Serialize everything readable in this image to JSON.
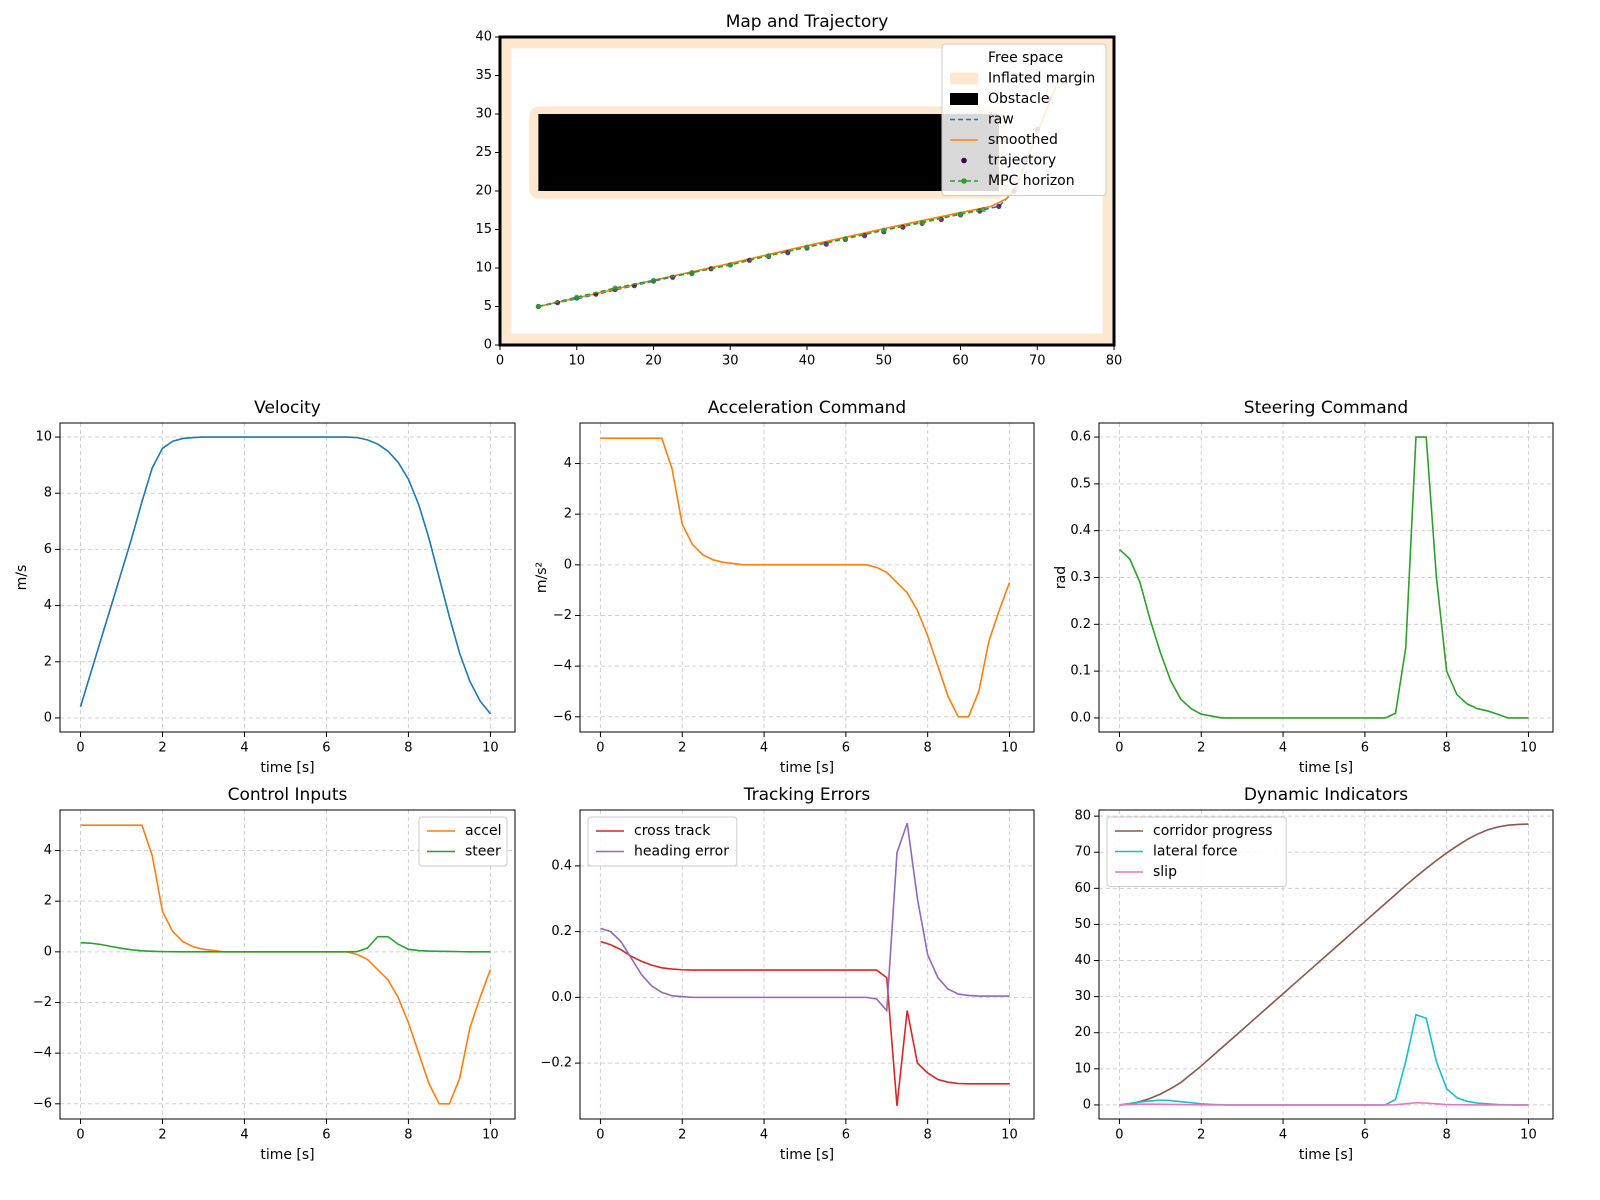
{
  "chart_data": [
    {
      "type": "map",
      "title": "Map and Trajectory",
      "xlim": [
        0,
        80
      ],
      "ylim": [
        0,
        40
      ],
      "xticks": [
        0,
        10,
        20,
        30,
        40,
        50,
        60,
        70,
        80
      ],
      "yticks": [
        0,
        5,
        10,
        15,
        20,
        25,
        30,
        35,
        40
      ],
      "legend": "upper right",
      "series": [
        {
          "name": "Free space",
          "color": "#ffffff",
          "style": "patch",
          "rects": [
            {
              "x": [
                1.5,
                78.5
              ],
              "y": [
                1.5,
                38.5
              ]
            }
          ]
        },
        {
          "name": "Inflated margin",
          "color": "#fde9cf",
          "style": "patch",
          "rects": [
            {
              "x": [
                0,
                80
              ],
              "y": [
                0,
                40
              ]
            },
            {
              "x": [
                3.8,
                66
              ],
              "y": [
                19,
                31
              ]
            }
          ]
        },
        {
          "name": "Obstacle",
          "color": "#000000",
          "style": "patch",
          "rects": [
            {
              "x": [
                5,
                65
              ],
              "y": [
                20,
                30
              ]
            }
          ]
        },
        {
          "name": "raw",
          "color": "#1f77b4",
          "style": "dashed",
          "x": [
            5,
            10,
            20,
            30,
            40,
            50,
            60,
            65,
            67,
            69,
            71,
            73
          ],
          "y": [
            5,
            6,
            8.3,
            10.5,
            12.8,
            15,
            17,
            18,
            20,
            25,
            30,
            35
          ]
        },
        {
          "name": "smoothed",
          "color": "#ff7f0e",
          "style": "line",
          "x": [
            5,
            10,
            20,
            30,
            40,
            50,
            60,
            64,
            66,
            67.5,
            69,
            71,
            73
          ],
          "y": [
            5,
            6.1,
            8.4,
            10.6,
            12.9,
            15.1,
            17.2,
            18,
            19,
            21,
            25,
            30,
            35
          ]
        },
        {
          "name": "trajectory",
          "color": "#440154",
          "style": "points",
          "x": [
            5,
            7.5,
            10,
            12.5,
            15,
            17.5,
            20,
            22.5,
            25,
            27.5,
            30,
            32.5,
            35,
            37.5,
            40,
            42.5,
            45,
            47.5,
            50,
            52.5,
            55,
            57.5,
            60,
            62.5,
            65,
            67,
            68.5,
            70,
            71.5
          ],
          "y": [
            5,
            5.5,
            6.1,
            6.6,
            7.2,
            7.7,
            8.3,
            8.8,
            9.3,
            9.9,
            10.4,
            11,
            11.5,
            12,
            12.6,
            13.1,
            13.7,
            14.2,
            14.7,
            15.3,
            15.8,
            16.3,
            16.9,
            17.4,
            18,
            20,
            24,
            28,
            32
          ]
        },
        {
          "name": "MPC horizon",
          "color": "#2ca02c",
          "style": "dashed-points",
          "x": [
            5,
            10,
            15,
            20,
            25,
            30,
            35,
            40,
            45,
            50,
            55,
            60,
            63
          ],
          "y": [
            5,
            6.2,
            7.4,
            8.4,
            9.4,
            10.4,
            11.6,
            12.7,
            13.8,
            14.9,
            15.9,
            17,
            17.6
          ]
        }
      ]
    },
    {
      "type": "line",
      "title": "Velocity",
      "xlabel": "time [s]",
      "ylabel": "m/s",
      "grid": true,
      "xlim": [
        -0.5,
        10.6
      ],
      "ylim": [
        -0.5,
        10.5
      ],
      "xticks": [
        0,
        2,
        4,
        6,
        8,
        10
      ],
      "yticks": [
        0,
        2,
        4,
        6,
        8,
        10
      ],
      "x": [
        0,
        0.25,
        0.5,
        0.75,
        1,
        1.25,
        1.5,
        1.75,
        2,
        2.25,
        2.5,
        2.75,
        3,
        3.25,
        3.5,
        3.75,
        4,
        4.25,
        4.5,
        4.75,
        5,
        5.25,
        5.5,
        5.75,
        6,
        6.25,
        6.5,
        6.75,
        7,
        7.25,
        7.5,
        7.75,
        8,
        8.25,
        8.5,
        8.75,
        9,
        9.25,
        9.5,
        9.75,
        10
      ],
      "color": "#1f77b4",
      "values": [
        0.4,
        1.6,
        2.8,
        4.0,
        5.2,
        6.4,
        7.7,
        8.9,
        9.6,
        9.85,
        9.95,
        9.98,
        10,
        10,
        10,
        10,
        10,
        10,
        10,
        10,
        10,
        10,
        10,
        10,
        10,
        10,
        10,
        9.98,
        9.9,
        9.75,
        9.5,
        9.1,
        8.5,
        7.6,
        6.4,
        5.0,
        3.6,
        2.3,
        1.3,
        0.6,
        0.15
      ]
    },
    {
      "type": "line",
      "title": "Acceleration Command",
      "xlabel": "time [s]",
      "ylabel": "m/s²",
      "grid": true,
      "xlim": [
        -0.5,
        10.6
      ],
      "ylim": [
        -6.6,
        5.6
      ],
      "xticks": [
        0,
        2,
        4,
        6,
        8,
        10
      ],
      "yticks": [
        {
          "value": -6,
          "label": "−6"
        },
        {
          "value": -4,
          "label": "−4"
        },
        {
          "value": -2,
          "label": "−2"
        },
        0,
        2,
        4
      ],
      "x": [
        0,
        0.25,
        0.5,
        0.75,
        1,
        1.25,
        1.5,
        1.75,
        2,
        2.25,
        2.5,
        2.75,
        3,
        3.25,
        3.5,
        3.75,
        4,
        4.25,
        4.5,
        4.75,
        5,
        5.25,
        5.5,
        5.75,
        6,
        6.25,
        6.5,
        6.75,
        7,
        7.25,
        7.5,
        7.75,
        8,
        8.25,
        8.5,
        8.75,
        9,
        9.25,
        9.5,
        9.75,
        10
      ],
      "color": "#ff7f0e",
      "values": [
        5,
        5,
        5,
        5,
        5,
        5,
        5,
        3.8,
        1.6,
        0.8,
        0.4,
        0.2,
        0.1,
        0.05,
        0,
        0,
        0,
        0,
        0,
        0,
        0,
        0,
        0,
        0,
        0,
        0,
        0,
        -0.1,
        -0.3,
        -0.7,
        -1.1,
        -1.8,
        -2.8,
        -4.0,
        -5.2,
        -6.0,
        -6.0,
        -5.0,
        -3.0,
        -1.8,
        -0.7
      ]
    },
    {
      "type": "line",
      "title": "Steering Command",
      "xlabel": "time [s]",
      "ylabel": "rad",
      "grid": true,
      "xlim": [
        -0.5,
        10.6
      ],
      "ylim": [
        -0.03,
        0.63
      ],
      "xticks": [
        0,
        2,
        4,
        6,
        8,
        10
      ],
      "yticks": [
        {
          "value": 0,
          "label": "0.0"
        },
        0.1,
        0.2,
        0.3,
        0.4,
        0.5,
        0.6
      ],
      "x": [
        0,
        0.25,
        0.5,
        0.75,
        1,
        1.25,
        1.5,
        1.75,
        2,
        2.25,
        2.5,
        2.75,
        3,
        3.25,
        3.5,
        3.75,
        4,
        4.25,
        4.5,
        4.75,
        5,
        5.25,
        5.5,
        5.75,
        6,
        6.25,
        6.5,
        6.75,
        7,
        7.25,
        7.5,
        7.75,
        8,
        8.25,
        8.5,
        8.75,
        9,
        9.25,
        9.5,
        9.75,
        10
      ],
      "color": "#2ca02c",
      "values": [
        0.36,
        0.34,
        0.29,
        0.21,
        0.14,
        0.08,
        0.04,
        0.02,
        0.008,
        0.004,
        0,
        0,
        0,
        0,
        0,
        0,
        0,
        0,
        0,
        0,
        0,
        0,
        0,
        0,
        0,
        0,
        0,
        0.01,
        0.15,
        0.6,
        0.6,
        0.3,
        0.1,
        0.05,
        0.03,
        0.02,
        0.015,
        0.008,
        0,
        0,
        0
      ]
    },
    {
      "type": "line",
      "title": "Control Inputs",
      "xlabel": "time [s]",
      "grid": true,
      "legend": "upper right",
      "xlim": [
        -0.5,
        10.6
      ],
      "ylim": [
        -6.6,
        5.6
      ],
      "xticks": [
        0,
        2,
        4,
        6,
        8,
        10
      ],
      "yticks": [
        {
          "value": -6,
          "label": "−6"
        },
        {
          "value": -4,
          "label": "−4"
        },
        {
          "value": -2,
          "label": "−2"
        },
        0,
        2,
        4
      ],
      "x": [
        0,
        0.25,
        0.5,
        0.75,
        1,
        1.25,
        1.5,
        1.75,
        2,
        2.25,
        2.5,
        2.75,
        3,
        3.25,
        3.5,
        3.75,
        4,
        4.25,
        4.5,
        4.75,
        5,
        5.25,
        5.5,
        5.75,
        6,
        6.25,
        6.5,
        6.75,
        7,
        7.25,
        7.5,
        7.75,
        8,
        8.25,
        8.5,
        8.75,
        9,
        9.25,
        9.5,
        9.75,
        10
      ],
      "series": [
        {
          "name": "accel",
          "color": "#ff7f0e",
          "values": [
            5,
            5,
            5,
            5,
            5,
            5,
            5,
            3.8,
            1.6,
            0.8,
            0.4,
            0.2,
            0.1,
            0.05,
            0,
            0,
            0,
            0,
            0,
            0,
            0,
            0,
            0,
            0,
            0,
            0,
            0,
            -0.1,
            -0.3,
            -0.7,
            -1.1,
            -1.8,
            -2.8,
            -4.0,
            -5.2,
            -6.0,
            -6.0,
            -5.0,
            -3.0,
            -1.8,
            -0.7
          ]
        },
        {
          "name": "steer",
          "color": "#2ca02c",
          "values": [
            0.36,
            0.34,
            0.29,
            0.21,
            0.14,
            0.08,
            0.04,
            0.02,
            0.008,
            0.004,
            0,
            0,
            0,
            0,
            0,
            0,
            0,
            0,
            0,
            0,
            0,
            0,
            0,
            0,
            0,
            0,
            0,
            0.01,
            0.15,
            0.6,
            0.6,
            0.3,
            0.1,
            0.05,
            0.03,
            0.02,
            0.015,
            0.008,
            0,
            0,
            0
          ]
        }
      ]
    },
    {
      "type": "line",
      "title": "Tracking Errors",
      "xlabel": "time [s]",
      "grid": true,
      "legend": "upper left",
      "xlim": [
        -0.5,
        10.6
      ],
      "ylim": [
        -0.37,
        0.57
      ],
      "xticks": [
        0,
        2,
        4,
        6,
        8,
        10
      ],
      "yticks": [
        {
          "value": -0.2,
          "label": "−0.2"
        },
        {
          "value": 0,
          "label": "0.0"
        },
        0.2,
        0.4
      ],
      "x": [
        0,
        0.25,
        0.5,
        0.75,
        1,
        1.25,
        1.5,
        1.75,
        2,
        2.25,
        2.5,
        2.75,
        3,
        3.25,
        3.5,
        3.75,
        4,
        4.25,
        4.5,
        4.75,
        5,
        5.25,
        5.5,
        5.75,
        6,
        6.25,
        6.5,
        6.75,
        7,
        7.25,
        7.5,
        7.75,
        8,
        8.25,
        8.5,
        8.75,
        9,
        9.25,
        9.5,
        9.75,
        10
      ],
      "series": [
        {
          "name": "cross track",
          "color": "#d62728",
          "values": [
            0.17,
            0.16,
            0.145,
            0.125,
            0.11,
            0.098,
            0.09,
            0.086,
            0.084,
            0.083,
            0.083,
            0.083,
            0.083,
            0.083,
            0.083,
            0.083,
            0.083,
            0.083,
            0.083,
            0.083,
            0.083,
            0.083,
            0.083,
            0.083,
            0.083,
            0.083,
            0.083,
            0.083,
            0.06,
            -0.33,
            -0.04,
            -0.2,
            -0.23,
            -0.25,
            -0.258,
            -0.262,
            -0.263,
            -0.263,
            -0.263,
            -0.263,
            -0.263
          ]
        },
        {
          "name": "heading error",
          "color": "#9467bd",
          "values": [
            0.21,
            0.2,
            0.17,
            0.12,
            0.07,
            0.035,
            0.015,
            0.005,
            0.002,
            0,
            0,
            0,
            0,
            0,
            0,
            0,
            0,
            0,
            0,
            0,
            0,
            0,
            0,
            0,
            0,
            0,
            0,
            -0.005,
            -0.04,
            0.44,
            0.53,
            0.3,
            0.13,
            0.06,
            0.025,
            0.01,
            0.006,
            0.004,
            0.004,
            0.004,
            0.004
          ]
        }
      ]
    },
    {
      "type": "line",
      "title": "Dynamic Indicators",
      "xlabel": "time [s]",
      "grid": true,
      "legend": "upper left",
      "xlim": [
        -0.5,
        10.6
      ],
      "ylim": [
        -3.9,
        81.7
      ],
      "xticks": [
        0,
        2,
        4,
        6,
        8,
        10
      ],
      "yticks": [
        0,
        10,
        20,
        30,
        40,
        50,
        60,
        70,
        80
      ],
      "x": [
        0,
        0.25,
        0.5,
        0.75,
        1,
        1.25,
        1.5,
        1.75,
        2,
        2.25,
        2.5,
        2.75,
        3,
        3.25,
        3.5,
        3.75,
        4,
        4.25,
        4.5,
        4.75,
        5,
        5.25,
        5.5,
        5.75,
        6,
        6.25,
        6.5,
        6.75,
        7,
        7.25,
        7.5,
        7.75,
        8,
        8.25,
        8.5,
        8.75,
        9,
        9.25,
        9.5,
        9.75,
        10
      ],
      "series": [
        {
          "name": "corridor progress",
          "color": "#8c564b",
          "values": [
            0,
            0.3,
            0.9,
            1.8,
            3,
            4.5,
            6.2,
            8.5,
            10.8,
            13.3,
            15.8,
            18.3,
            20.8,
            23.3,
            25.8,
            28.3,
            30.8,
            33.3,
            35.8,
            38.3,
            40.8,
            43.3,
            45.8,
            48.3,
            50.8,
            53.3,
            55.8,
            58.3,
            60.8,
            63.2,
            65.5,
            67.7,
            69.8,
            71.7,
            73.5,
            75,
            76.2,
            77,
            77.5,
            77.7,
            77.8
          ]
        },
        {
          "name": "lateral force",
          "color": "#17becf",
          "values": [
            0,
            0.4,
            0.8,
            1.1,
            1.3,
            1.2,
            0.9,
            0.6,
            0.3,
            0.15,
            0.05,
            0,
            0,
            0,
            0,
            0,
            0,
            0,
            0,
            0,
            0,
            0,
            0,
            0,
            0,
            0,
            0,
            1.5,
            12,
            25,
            24,
            12,
            4.5,
            2,
            1,
            0.5,
            0.3,
            0.1,
            0.05,
            0,
            0
          ]
        },
        {
          "name": "slip",
          "color": "#e377c2",
          "values": [
            0,
            0.1,
            0.2,
            0.2,
            0.2,
            0.15,
            0.1,
            0.05,
            0.02,
            0,
            0,
            0,
            0,
            0,
            0,
            0,
            0,
            0,
            0,
            0,
            0,
            0,
            0,
            0,
            0,
            0,
            0,
            0.05,
            0.3,
            0.6,
            0.5,
            0.3,
            0.1,
            0.05,
            0.02,
            0,
            0,
            0,
            0,
            0,
            0
          ]
        }
      ]
    }
  ]
}
